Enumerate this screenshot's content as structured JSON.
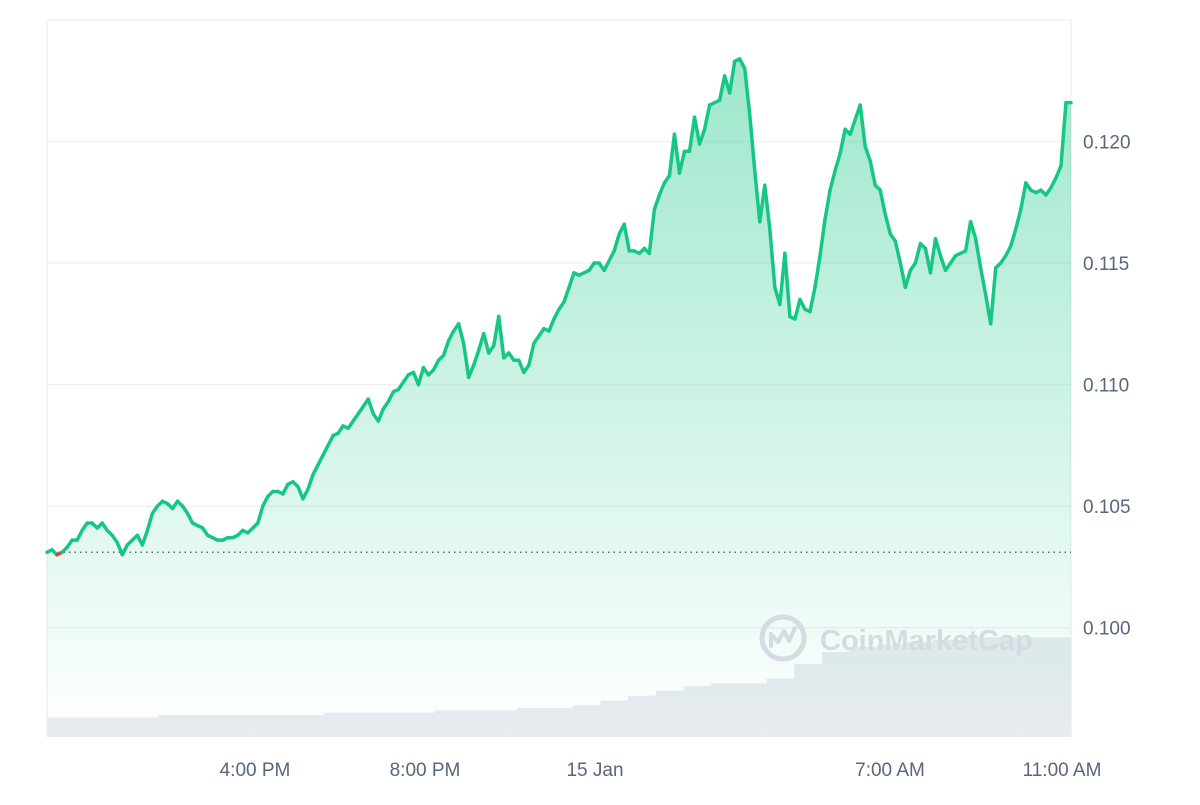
{
  "watermark": {
    "text": "CoinMarketCap",
    "icon": "coinmarketcap-logo-icon"
  },
  "colors": {
    "line_up": "#16c784",
    "line_down": "#ea3943",
    "area_fill": "#16c784",
    "grid": "#eff2f5",
    "volume": "#e8ebf0",
    "baseline": "#58667e",
    "tick_text": "#58667e"
  },
  "chart_data": {
    "type": "area",
    "title": "",
    "xlabel": "",
    "ylabel": "",
    "x_ticks": [
      "4:00 PM",
      "8:00 PM",
      "15 Jan",
      "7:00 AM",
      "11:00 AM"
    ],
    "y_ticks": [
      0.1,
      0.105,
      0.11,
      0.115,
      0.12
    ],
    "y_tick_labels": [
      "0.100",
      "0.105",
      "0.110",
      "0.115",
      "0.120"
    ],
    "ylim": [
      0.0955,
      0.125
    ],
    "open_price": 0.1031,
    "grid": true,
    "series": [
      {
        "values": [
          0.1031,
          0.1032,
          0.103,
          0.1031,
          0.1033,
          0.1036,
          0.1036,
          0.104,
          0.1043,
          0.1043,
          0.1041,
          0.1043,
          0.104,
          0.1038,
          0.1035,
          0.103,
          0.1034,
          0.1036,
          0.1038,
          0.1034,
          0.104,
          0.1047,
          0.105,
          0.1052,
          0.1051,
          0.1049,
          0.1052,
          0.105,
          0.1047,
          0.1043,
          0.1042,
          0.1041,
          0.1038,
          0.1037,
          0.1036,
          0.1036,
          0.1037,
          0.1037,
          0.1038,
          0.104,
          0.1039,
          0.1041,
          0.1043,
          0.105,
          0.1054,
          0.1056,
          0.1056,
          0.1055,
          0.1059,
          0.106,
          0.1058,
          0.1053,
          0.1057,
          0.1063,
          0.1067,
          0.1071,
          0.1075,
          0.1079,
          0.108,
          0.1083,
          0.1082,
          0.1085,
          0.1088,
          0.1091,
          0.1094,
          0.1088,
          0.1085,
          0.109,
          0.1093,
          0.1097,
          0.1098,
          0.1101,
          0.1104,
          0.1105,
          0.11,
          0.1107,
          0.1104,
          0.1106,
          0.111,
          0.1112,
          0.1118,
          0.1122,
          0.1125,
          0.1117,
          0.1103,
          0.1108,
          0.1114,
          0.1121,
          0.1113,
          0.1116,
          0.1128,
          0.1111,
          0.1113,
          0.111,
          0.111,
          0.1105,
          0.1108,
          0.1117,
          0.112,
          0.1123,
          0.1122,
          0.1127,
          0.1131,
          0.1134,
          0.114,
          0.1146,
          0.1145,
          0.1146,
          0.1147,
          0.115,
          0.115,
          0.1147,
          0.1151,
          0.1155,
          0.1162,
          0.1166,
          0.1155,
          0.1155,
          0.1154,
          0.1156,
          0.1154,
          0.1172,
          0.1178,
          0.1183,
          0.1186,
          0.1203,
          0.1187,
          0.1196,
          0.1196,
          0.121,
          0.1199,
          0.1205,
          0.1215,
          0.1216,
          0.1217,
          0.1227,
          0.122,
          0.1233,
          0.1234,
          0.123,
          0.1211,
          0.1188,
          0.1167,
          0.1182,
          0.1164,
          0.114,
          0.1133,
          0.1154,
          0.1128,
          0.1127,
          0.1135,
          0.1131,
          0.113,
          0.114,
          0.1153,
          0.1168,
          0.118,
          0.1188,
          0.1195,
          0.1205,
          0.1203,
          0.1209,
          0.1215,
          0.1198,
          0.1192,
          0.1182,
          0.118,
          0.117,
          0.1162,
          0.1159,
          0.115,
          0.114,
          0.1147,
          0.115,
          0.1158,
          0.1156,
          0.1146,
          0.116,
          0.1153,
          0.1147,
          0.115,
          0.1153,
          0.1154,
          0.1155,
          0.1167,
          0.116,
          0.1148,
          0.1137,
          0.1125,
          0.1148,
          0.115,
          0.1153,
          0.1157,
          0.1164,
          0.1172,
          0.1183,
          0.118,
          0.1179,
          0.118,
          0.1178,
          0.1181,
          0.1185,
          0.119,
          0.1216,
          0.1216
        ]
      }
    ],
    "volume": [
      0.0963,
      0.0963,
      0.0963,
      0.0963,
      0.0964,
      0.0964,
      0.0964,
      0.0964,
      0.0964,
      0.0964,
      0.0965,
      0.0965,
      0.0965,
      0.0965,
      0.0966,
      0.0966,
      0.0966,
      0.0967,
      0.0967,
      0.0968,
      0.097,
      0.0972,
      0.0974,
      0.0976,
      0.0977,
      0.0977,
      0.0979,
      0.0985,
      0.099,
      0.0992,
      0.0993,
      0.0994,
      0.0995,
      0.0996,
      0.0996,
      0.0996,
      0.0996
    ]
  }
}
